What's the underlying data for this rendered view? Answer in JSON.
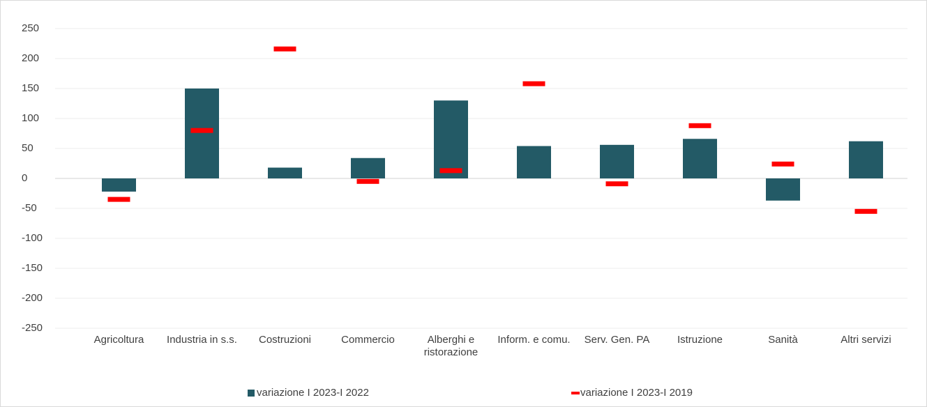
{
  "chart_data": {
    "type": "bar",
    "categories": [
      "Agricoltura",
      "Industria in s.s.",
      "Costruzioni",
      "Commercio",
      "Alberghi e ristorazione",
      "Inform. e comu.",
      "Serv. Gen. PA",
      "Istruzione",
      "Sanità",
      "Altri servizi"
    ],
    "series": [
      {
        "name": "variazione I 2023-I 2022",
        "color": "#235a66",
        "type": "bar",
        "values": [
          -22,
          150,
          18,
          34,
          130,
          54,
          56,
          66,
          -37,
          62
        ]
      },
      {
        "name": "variazione I 2023-I 2019",
        "color": "#ff0000",
        "type": "marker",
        "values": [
          -35,
          80,
          216,
          -5,
          13,
          158,
          -9,
          88,
          24,
          -55
        ]
      }
    ],
    "ylim": [
      -250,
      250
    ],
    "yticks": [
      -250,
      -200,
      -150,
      -100,
      -50,
      0,
      50,
      100,
      150,
      200,
      250
    ],
    "grid": true,
    "legend": "bottom"
  }
}
